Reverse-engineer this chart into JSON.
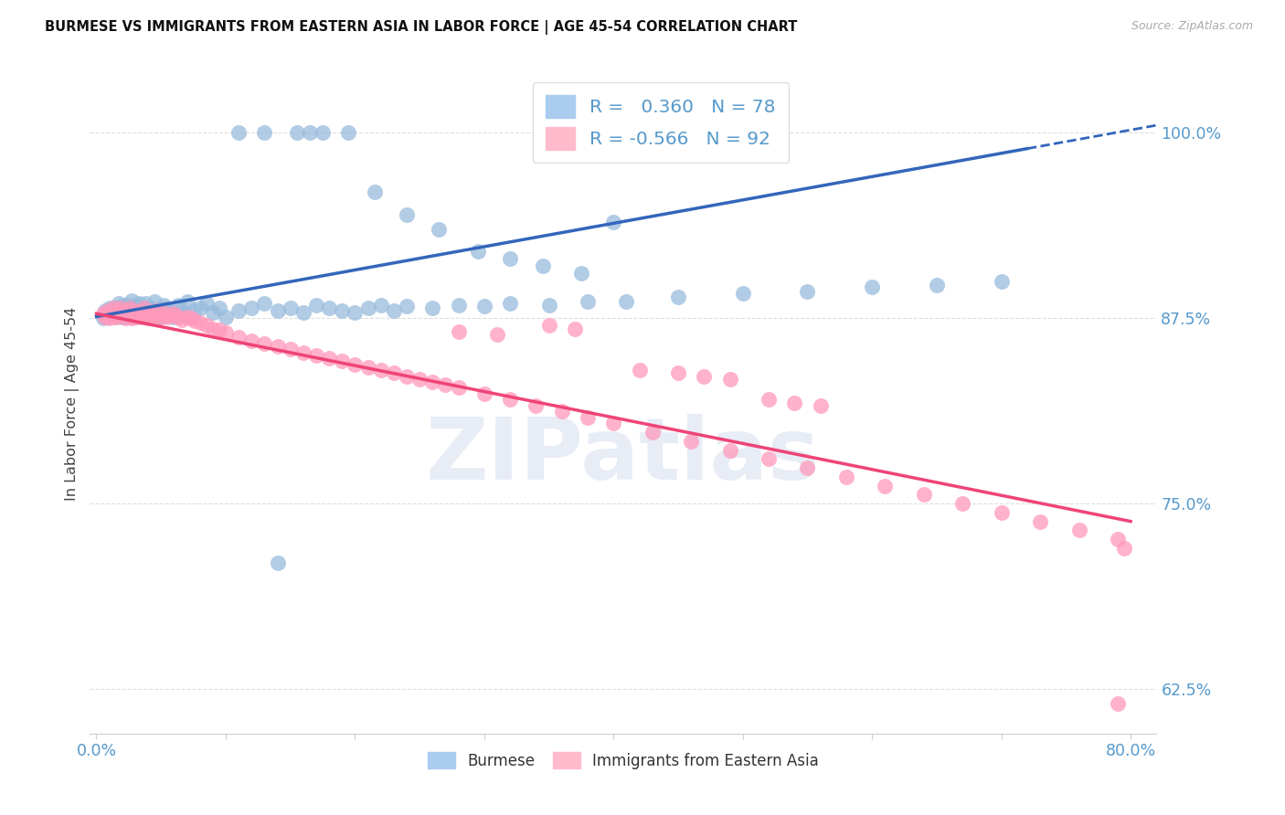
{
  "title": "BURMESE VS IMMIGRANTS FROM EASTERN ASIA IN LABOR FORCE | AGE 45-54 CORRELATION CHART",
  "source": "Source: ZipAtlas.com",
  "ylabel": "In Labor Force | Age 45-54",
  "xlim": [
    -0.005,
    0.82
  ],
  "ylim": [
    0.595,
    1.04
  ],
  "yticks": [
    0.625,
    0.75,
    0.875,
    1.0
  ],
  "ytick_labels": [
    "62.5%",
    "75.0%",
    "87.5%",
    "100.0%"
  ],
  "xtick_positions": [
    0.0,
    0.1,
    0.2,
    0.3,
    0.4,
    0.5,
    0.6,
    0.7,
    0.8
  ],
  "xtick_labels": [
    "0.0%",
    "",
    "",
    "",
    "",
    "",
    "",
    "",
    "80.0%"
  ],
  "blue_R": "0.360",
  "blue_N": "78",
  "pink_R": "-0.566",
  "pink_N": "92",
  "blue_scatter_color": "#99BBDD",
  "pink_scatter_color": "#FF99BB",
  "blue_line_color": "#3366BB",
  "pink_line_color": "#EE4477",
  "blue_label": "Burmese",
  "pink_label": "Immigrants from Eastern Asia",
  "watermark_text": "ZIPatlas",
  "watermark_color": "#AABBDD",
  "grid_color": "#DDDDDD",
  "axis_tick_color": "#5599CC",
  "title_color": "#111111",
  "source_color": "#AAAAAA",
  "legend_text_color": "#5599CC",
  "background_color": "#FFFFFF",
  "blue_line_x": [
    0.0,
    0.82
  ],
  "blue_line_y": [
    0.876,
    1.005
  ],
  "pink_line_x": [
    0.0,
    0.8
  ],
  "pink_line_y": [
    0.878,
    0.738
  ],
  "blue_scatter_x": [
    0.005,
    0.007,
    0.008,
    0.01,
    0.01,
    0.012,
    0.013,
    0.015,
    0.015,
    0.016,
    0.017,
    0.018,
    0.019,
    0.02,
    0.02,
    0.022,
    0.023,
    0.024,
    0.025,
    0.026,
    0.027,
    0.028,
    0.03,
    0.03,
    0.032,
    0.033,
    0.035,
    0.036,
    0.037,
    0.038,
    0.04,
    0.042,
    0.044,
    0.045,
    0.047,
    0.05,
    0.052,
    0.055,
    0.058,
    0.06,
    0.063,
    0.065,
    0.068,
    0.07,
    0.075,
    0.08,
    0.085,
    0.09,
    0.095,
    0.1,
    0.11,
    0.12,
    0.13,
    0.14,
    0.15,
    0.16,
    0.17,
    0.18,
    0.19,
    0.2,
    0.21,
    0.22,
    0.23,
    0.24,
    0.26,
    0.28,
    0.3,
    0.32,
    0.35,
    0.38,
    0.41,
    0.45,
    0.5,
    0.55,
    0.6,
    0.65,
    0.7,
    0.14
  ],
  "blue_scatter_y": [
    0.875,
    0.88,
    0.876,
    0.877,
    0.882,
    0.878,
    0.88,
    0.876,
    0.88,
    0.882,
    0.885,
    0.877,
    0.88,
    0.876,
    0.883,
    0.879,
    0.884,
    0.878,
    0.876,
    0.882,
    0.887,
    0.879,
    0.876,
    0.884,
    0.88,
    0.885,
    0.878,
    0.882,
    0.876,
    0.885,
    0.88,
    0.882,
    0.878,
    0.886,
    0.88,
    0.876,
    0.884,
    0.882,
    0.879,
    0.876,
    0.884,
    0.88,
    0.878,
    0.886,
    0.88,
    0.882,
    0.885,
    0.879,
    0.882,
    0.876,
    0.88,
    0.882,
    0.885,
    0.88,
    0.882,
    0.879,
    0.884,
    0.882,
    0.88,
    0.879,
    0.882,
    0.884,
    0.88,
    0.883,
    0.882,
    0.884,
    0.883,
    0.885,
    0.884,
    0.886,
    0.886,
    0.889,
    0.892,
    0.893,
    0.896,
    0.897,
    0.9,
    0.71
  ],
  "blue_high_y_x": [
    0.11,
    0.13,
    0.155,
    0.165,
    0.175,
    0.195,
    0.215,
    0.24,
    0.265,
    0.295,
    0.32,
    0.345,
    0.375,
    0.4
  ],
  "blue_high_y_y": [
    1.0,
    1.0,
    1.0,
    1.0,
    1.0,
    1.0,
    0.96,
    0.945,
    0.935,
    0.92,
    0.915,
    0.91,
    0.905,
    0.94
  ],
  "pink_scatter_x": [
    0.005,
    0.007,
    0.009,
    0.01,
    0.012,
    0.013,
    0.015,
    0.016,
    0.017,
    0.019,
    0.02,
    0.022,
    0.023,
    0.025,
    0.026,
    0.027,
    0.028,
    0.03,
    0.032,
    0.034,
    0.035,
    0.037,
    0.04,
    0.042,
    0.044,
    0.046,
    0.048,
    0.05,
    0.053,
    0.055,
    0.058,
    0.06,
    0.063,
    0.066,
    0.07,
    0.073,
    0.076,
    0.08,
    0.085,
    0.09,
    0.095,
    0.1,
    0.11,
    0.12,
    0.13,
    0.14,
    0.15,
    0.16,
    0.17,
    0.18,
    0.19,
    0.2,
    0.21,
    0.22,
    0.23,
    0.24,
    0.25,
    0.26,
    0.27,
    0.28,
    0.3,
    0.32,
    0.34,
    0.36,
    0.38,
    0.4,
    0.43,
    0.46,
    0.49,
    0.52,
    0.55,
    0.58,
    0.61,
    0.64,
    0.67,
    0.7,
    0.73,
    0.76,
    0.79,
    0.795,
    0.35,
    0.37,
    0.28,
    0.31,
    0.42,
    0.45,
    0.47,
    0.49,
    0.52,
    0.54,
    0.56,
    0.79
  ],
  "pink_scatter_y": [
    0.878,
    0.876,
    0.88,
    0.875,
    0.877,
    0.882,
    0.876,
    0.879,
    0.877,
    0.882,
    0.878,
    0.875,
    0.88,
    0.877,
    0.882,
    0.875,
    0.878,
    0.876,
    0.88,
    0.876,
    0.878,
    0.882,
    0.875,
    0.878,
    0.876,
    0.88,
    0.877,
    0.876,
    0.878,
    0.876,
    0.877,
    0.878,
    0.876,
    0.874,
    0.876,
    0.875,
    0.873,
    0.872,
    0.87,
    0.868,
    0.867,
    0.865,
    0.862,
    0.86,
    0.858,
    0.856,
    0.854,
    0.852,
    0.85,
    0.848,
    0.846,
    0.844,
    0.842,
    0.84,
    0.838,
    0.836,
    0.834,
    0.832,
    0.83,
    0.828,
    0.824,
    0.82,
    0.816,
    0.812,
    0.808,
    0.804,
    0.798,
    0.792,
    0.786,
    0.78,
    0.774,
    0.768,
    0.762,
    0.756,
    0.75,
    0.744,
    0.738,
    0.732,
    0.726,
    0.72,
    0.87,
    0.868,
    0.866,
    0.864,
    0.84,
    0.838,
    0.836,
    0.834,
    0.82,
    0.818,
    0.816,
    0.615
  ]
}
